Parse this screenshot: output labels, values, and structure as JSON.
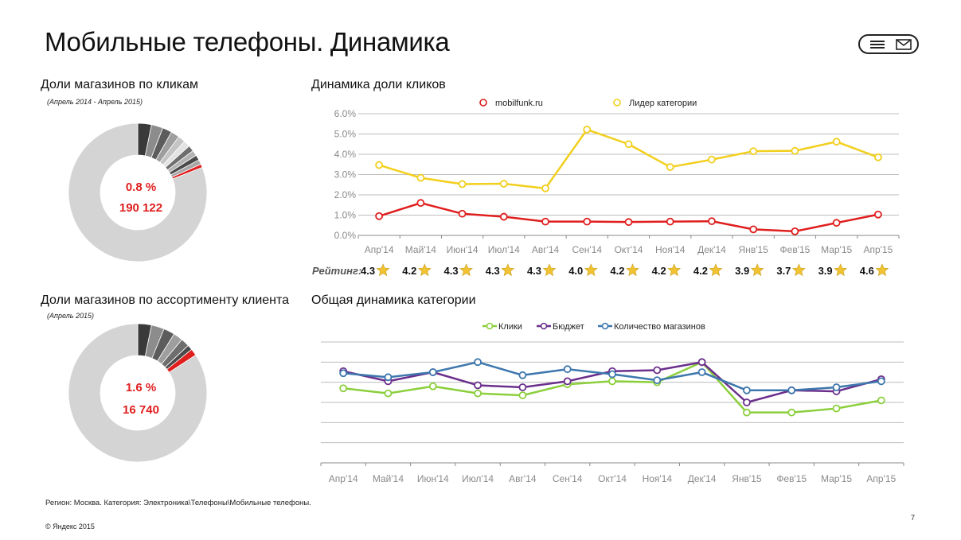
{
  "page": {
    "title": "Мобильные телефоны. Динамика",
    "footer_note": "Регион: Москва. Категория: Электроника\\Телефоны\\Мобильные телефоны.",
    "copyright": "© Яндекс 2015",
    "page_number": "7"
  },
  "header": {
    "icons": [
      "menu-icon",
      "mail-icon"
    ]
  },
  "colors": {
    "site": "#e01e1e",
    "leader": "#f2cf1d",
    "clicks": "#8ccf3c",
    "budget": "#6b2f8c",
    "shops": "#3d77ad",
    "grid": "#bdbdbd",
    "star": "#f1c232",
    "pie_rest": "#d4d4d4"
  },
  "chart_data": [
    {
      "id": "pie_clicks",
      "type": "pie",
      "title": "Доли магазинов по кликам",
      "subtitle": "(Апрель 2014 - Апрель 2015)",
      "center_percent": "0.8 %",
      "center_value": "190 122",
      "highlight_share": 0.8
    },
    {
      "id": "pie_assortment",
      "type": "pie",
      "title": "Доли магазинов по ассортименту клиента",
      "subtitle": "(Апрель 2015)",
      "center_percent": "1.6 %",
      "center_value": "16 740",
      "highlight_share": 1.6
    },
    {
      "id": "line_click_share",
      "type": "line",
      "title": "Динамика доли кликов",
      "categories": [
        "Апр'14",
        "Май'14",
        "Июн'14",
        "Июл'14",
        "Авг'14",
        "Сен'14",
        "Окт'14",
        "Ноя'14",
        "Дек'14",
        "Янв'15",
        "Фев'15",
        "Мар'15",
        "Апр'15"
      ],
      "y_ticks": [
        "0.0%",
        "1.0%",
        "2.0%",
        "3.0%",
        "4.0%",
        "5.0%",
        "6.0%"
      ],
      "ylim": [
        0,
        6
      ],
      "grid": true,
      "legend": "top",
      "series": [
        {
          "name": "mobilfunk.ru",
          "color_key": "site",
          "values": [
            0.95,
            1.6,
            1.07,
            0.92,
            0.68,
            0.68,
            0.66,
            0.68,
            0.7,
            0.3,
            0.2,
            0.62,
            1.03
          ]
        },
        {
          "name": "Лидер категории",
          "color_key": "leader",
          "values": [
            3.47,
            2.84,
            2.53,
            2.55,
            2.32,
            5.22,
            4.5,
            3.37,
            3.74,
            4.15,
            4.17,
            4.62,
            3.85
          ]
        }
      ],
      "rating": {
        "label": "Рейтинг:",
        "values": [
          "4.3",
          "4.2",
          "4.3",
          "4.3",
          "4.3",
          "4.0",
          "4.2",
          "4.2",
          "4.2",
          "3.9",
          "3.7",
          "3.9",
          "4.6"
        ]
      }
    },
    {
      "id": "line_category",
      "type": "line",
      "title": "Общая динамика категории",
      "categories": [
        "Апр'14",
        "Май'14",
        "Июн'14",
        "Июл'14",
        "Авг'14",
        "Сен'14",
        "Окт'14",
        "Ноя'14",
        "Дек'14",
        "Янв'15",
        "Фев'15",
        "Мар'15",
        "Апр'15"
      ],
      "grid": true,
      "legend": "top",
      "ylim": [
        0,
        6
      ],
      "series": [
        {
          "name": "Клики",
          "color_key": "clicks",
          "values": [
            3.7,
            3.45,
            3.8,
            3.45,
            3.35,
            3.9,
            4.05,
            4.0,
            5.0,
            2.5,
            2.5,
            2.7,
            3.1
          ]
        },
        {
          "name": "Бюджет",
          "color_key": "budget",
          "values": [
            4.55,
            4.05,
            4.5,
            3.85,
            3.75,
            4.05,
            4.55,
            4.6,
            5.0,
            3.0,
            3.6,
            3.55,
            4.15
          ]
        },
        {
          "name": "Количество магазинов",
          "color_key": "shops",
          "values": [
            4.45,
            4.25,
            4.5,
            5.0,
            4.35,
            4.65,
            4.4,
            4.1,
            4.5,
            3.6,
            3.6,
            3.75,
            4.05
          ]
        }
      ]
    }
  ]
}
